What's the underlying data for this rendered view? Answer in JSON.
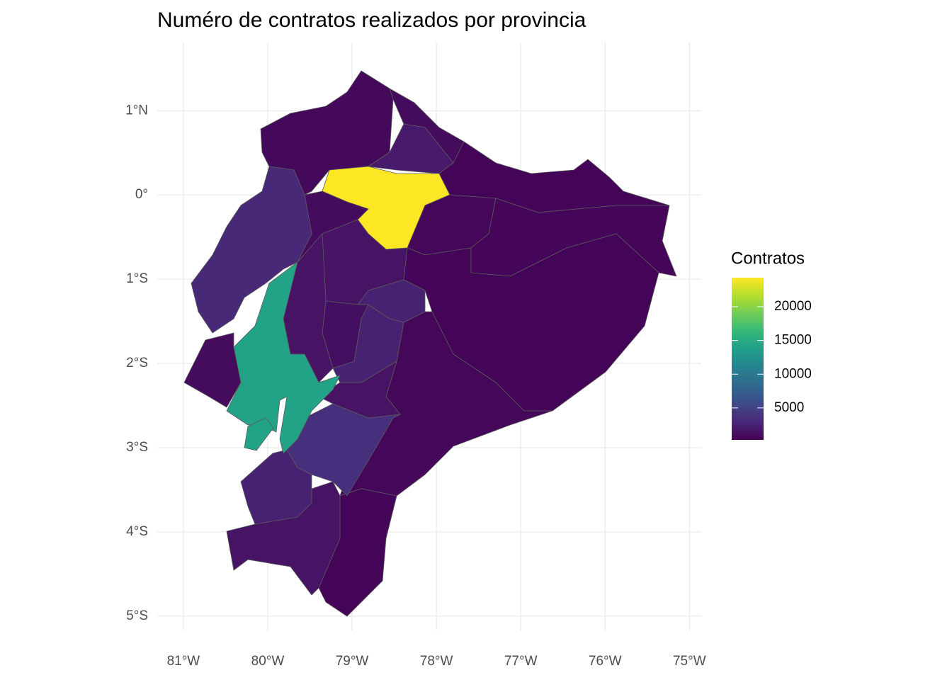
{
  "chart_data": {
    "type": "choropleth",
    "title": "Numéro de contratos realizados por provincia",
    "legend_title": "Contratos",
    "colormap": "viridis",
    "values": [
      800,
      1000,
      2000,
      24300,
      500,
      700,
      600,
      500,
      700,
      500,
      1500,
      2500,
      3500,
      1500,
      2500,
      2500,
      1500,
      1200,
      1500,
      1000,
      3000,
      14000,
      1000
    ],
    "clim": [
      263,
      24300
    ],
    "legend_ticks": [
      5000,
      10000,
      15000,
      20000
    ],
    "xlim": [
      -81.31,
      -74.86
    ],
    "ylim": [
      -5.17,
      1.81
    ],
    "xticks": [
      {
        "value": -81,
        "label": "81°W"
      },
      {
        "value": -80,
        "label": "80°W"
      },
      {
        "value": -79,
        "label": "79°W"
      },
      {
        "value": -78,
        "label": "78°W"
      },
      {
        "value": -77,
        "label": "77°W"
      },
      {
        "value": -76,
        "label": "76°W"
      },
      {
        "value": -75,
        "label": "75°W"
      }
    ],
    "yticks": [
      {
        "value": 1,
        "label": "1°N"
      },
      {
        "value": 0,
        "label": "0°"
      },
      {
        "value": -1,
        "label": "1°S"
      },
      {
        "value": -2,
        "label": "2°S"
      },
      {
        "value": -3,
        "label": "3°S"
      },
      {
        "value": -4,
        "label": "4°S"
      },
      {
        "value": -5,
        "label": "5°S"
      }
    ],
    "grid": true
  }
}
